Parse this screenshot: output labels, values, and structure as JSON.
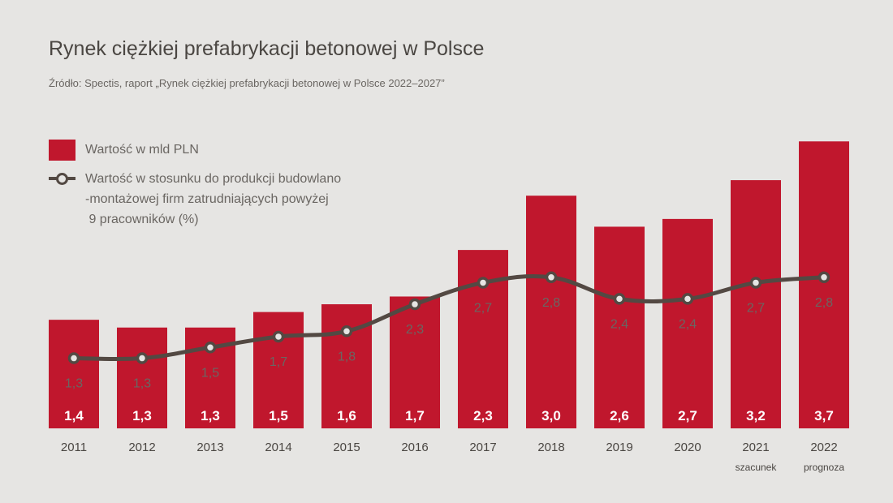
{
  "title": "Rynek ciężkiej prefabrykacji betonowej w Polsce",
  "source": "Źródło: Spectis, raport „Rynek ciężkiej prefabrykacji betonowej w Polsce 2022–2027”",
  "legend": {
    "bar_label": "Wartość w mld PLN",
    "line_label_lines": [
      "Wartość w stosunku do produkcji budowlano",
      "-montażowej firm zatrudniających powyżej",
      " 9 pracowników (%)"
    ]
  },
  "colors": {
    "bar": "#c0172d",
    "line": "#534943",
    "background": "#e6e5e3",
    "bar_label": "#ffffff",
    "line_label": "#6a6662",
    "axis_text": "#4a4642"
  },
  "chart_data": {
    "type": "bar",
    "categories": [
      "2011",
      "2012",
      "2013",
      "2014",
      "2015",
      "2016",
      "2017",
      "2018",
      "2019",
      "2020",
      "2021",
      "2022"
    ],
    "category_sublabels": [
      "",
      "",
      "",
      "",
      "",
      "",
      "",
      "",
      "",
      "",
      "szacunek",
      "prognoza"
    ],
    "series": [
      {
        "name": "Wartość w mld PLN",
        "type": "bar",
        "values": [
          1.4,
          1.3,
          1.3,
          1.5,
          1.6,
          1.7,
          2.3,
          3.0,
          2.6,
          2.7,
          3.2,
          3.7
        ],
        "labels": [
          "1,4",
          "1,3",
          "1,3",
          "1,5",
          "1,6",
          "1,7",
          "2,3",
          "3,0",
          "2,6",
          "2,7",
          "3,2",
          "3,7"
        ]
      },
      {
        "name": "Wartość w stosunku do produkcji budowlano-montażowej firm zatrudniających powyżej 9 pracowników (%)",
        "type": "line",
        "values": [
          1.3,
          1.3,
          1.5,
          1.7,
          1.8,
          2.3,
          2.7,
          2.8,
          2.4,
          2.4,
          2.7,
          2.8
        ],
        "labels": [
          "1,3",
          "1,3",
          "1,5",
          "1,7",
          "1,8",
          "2,3",
          "2,7",
          "2,8",
          "2,4",
          "2,4",
          "2,7",
          "2,8"
        ]
      }
    ],
    "legend_position": "top-left",
    "grid": false
  }
}
